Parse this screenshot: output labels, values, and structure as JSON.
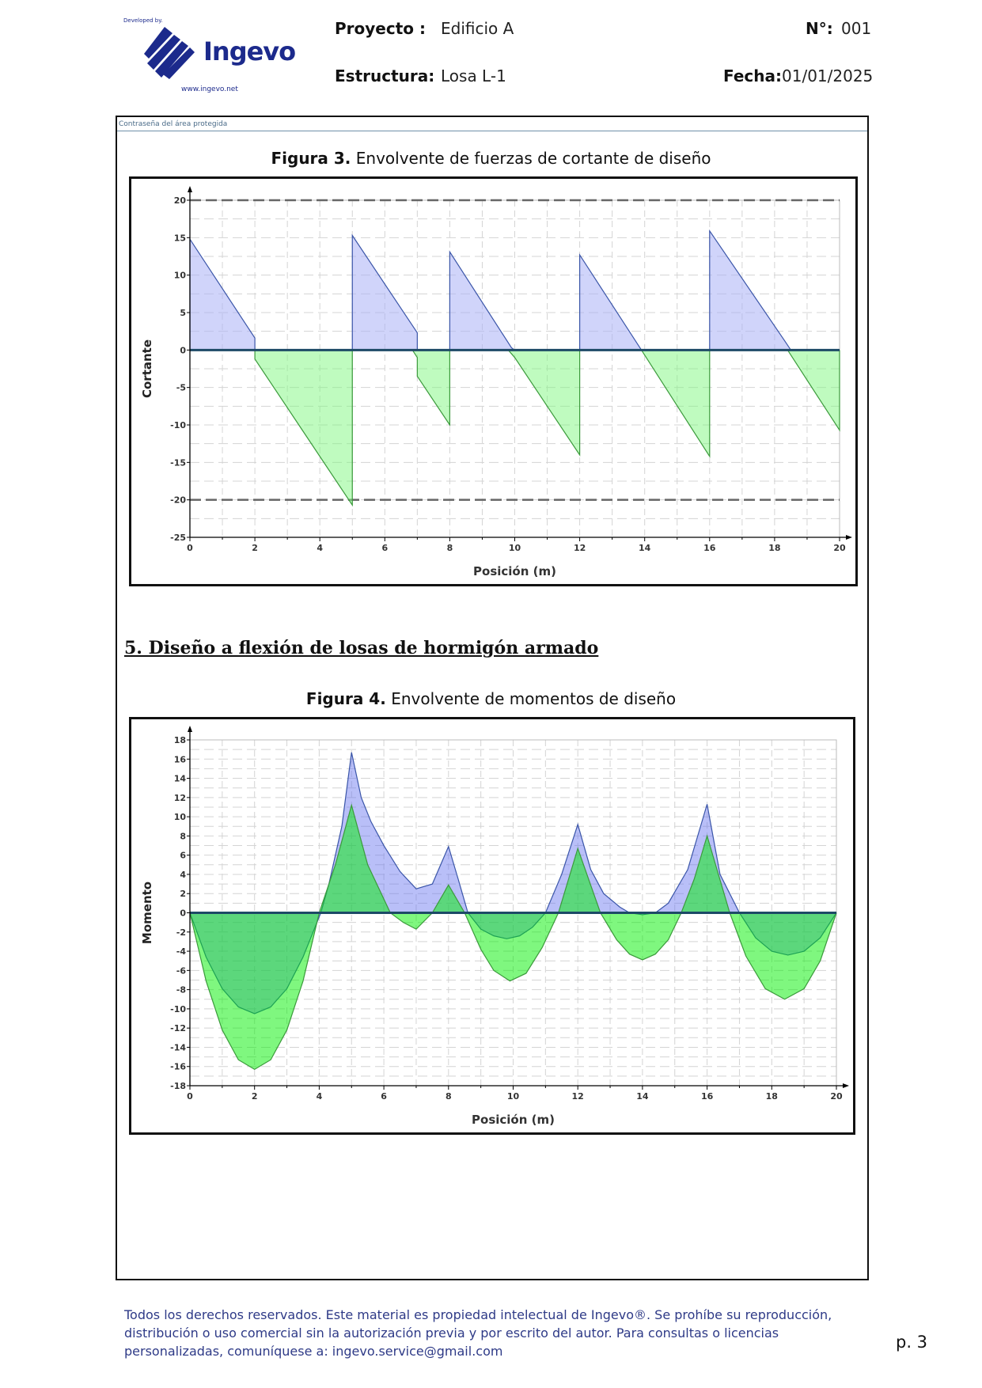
{
  "header": {
    "logo": {
      "developed_by": "Developed by.",
      "brand": "Ingevo",
      "website": "www.ingevo.net",
      "color": "#1c2a8c"
    },
    "project_label": "Proyecto :",
    "project_value": "Edificio A",
    "number_label": "N°:",
    "number_value": "001",
    "structure_label": "Estructura:",
    "structure_value": "Losa L-1",
    "date_label": "Fecha:",
    "date_value": "01/01/2025"
  },
  "frame": {
    "protected_area_label": "Contraseña del área protegida"
  },
  "figure3": {
    "prefix": "Figura 3.",
    "title": "Envolvente de fuerzas de cortante de diseño"
  },
  "section": {
    "heading": "5. Diseño a flexión de losas de hormigón armado"
  },
  "figure4": {
    "prefix": "Figura 4.",
    "title": "Envolvente de momentos  de diseño"
  },
  "chart_data": [
    {
      "type": "area",
      "xlabel": "Posición (m)",
      "ylabel": "Cortante",
      "xlim": [
        0,
        20
      ],
      "ylim": [
        -25,
        20
      ],
      "xticks": [
        0,
        2,
        4,
        6,
        8,
        10,
        12,
        14,
        16,
        18,
        20
      ],
      "yticks": [
        20,
        15,
        10,
        5,
        0,
        -5,
        -10,
        -15,
        -20,
        -25
      ],
      "grid": true,
      "reference_lines": [
        20,
        -20
      ],
      "series": [
        {
          "color": "#aab0f6",
          "points": [
            [
              0,
              0
            ],
            [
              0,
              14.8
            ],
            [
              2,
              1.6
            ],
            [
              2,
              0
            ],
            [
              5,
              0
            ],
            [
              5,
              15.3
            ],
            [
              7,
              2.3
            ],
            [
              7,
              0
            ],
            [
              8,
              0
            ],
            [
              8,
              13.1
            ],
            [
              9.9,
              0.3
            ],
            [
              10,
              0
            ],
            [
              12,
              0
            ],
            [
              12,
              12.7
            ],
            [
              13.9,
              0
            ],
            [
              16,
              0
            ],
            [
              16,
              15.9
            ],
            [
              18.3,
              1.3
            ],
            [
              18.5,
              0
            ],
            [
              20,
              0
            ]
          ]
        },
        {
          "color": "#80f880",
          "points": [
            [
              0,
              0
            ],
            [
              2,
              0
            ],
            [
              2,
              -1.2
            ],
            [
              5,
              -20.7
            ],
            [
              5,
              0
            ],
            [
              6.85,
              0
            ],
            [
              7,
              -1
            ],
            [
              7,
              -3.5
            ],
            [
              8,
              -10
            ],
            [
              8,
              0
            ],
            [
              9.8,
              0
            ],
            [
              10,
              -1
            ],
            [
              12,
              -14
            ],
            [
              12,
              0
            ],
            [
              13.9,
              0
            ],
            [
              16,
              -14.2
            ],
            [
              16,
              0
            ],
            [
              18.4,
              0
            ],
            [
              20,
              -10.7
            ],
            [
              20,
              0
            ]
          ]
        }
      ]
    },
    {
      "type": "area",
      "xlabel": "Posición (m)",
      "ylabel": "Momento",
      "xlim": [
        0,
        20
      ],
      "ylim": [
        -18,
        18
      ],
      "xticks": [
        0,
        2,
        4,
        6,
        8,
        10,
        12,
        14,
        16,
        18,
        20
      ],
      "yticks": [
        18,
        16,
        14,
        12,
        10,
        8,
        6,
        4,
        2,
        0,
        -2,
        -4,
        -6,
        -8,
        -10,
        -12,
        -14,
        -16,
        -18
      ],
      "grid": true,
      "series": [
        {
          "color": "#6470f0",
          "points": [
            [
              0,
              0
            ],
            [
              0.5,
              -4.6
            ],
            [
              1,
              -7.9
            ],
            [
              1.5,
              -9.8
            ],
            [
              2,
              -10.5
            ],
            [
              2.5,
              -9.8
            ],
            [
              3,
              -7.9
            ],
            [
              3.5,
              -4.6
            ],
            [
              4.05,
              0
            ],
            [
              4.3,
              3
            ],
            [
              4.7,
              9
            ],
            [
              5,
              16.7
            ],
            [
              5.3,
              12
            ],
            [
              5.6,
              9.5
            ],
            [
              6,
              7
            ],
            [
              6.5,
              4.3
            ],
            [
              7,
              2.5
            ],
            [
              7.5,
              3
            ],
            [
              8,
              6.9
            ],
            [
              8.3,
              3.5
            ],
            [
              8.6,
              0
            ],
            [
              9,
              -1.7
            ],
            [
              9.4,
              -2.4
            ],
            [
              9.8,
              -2.7
            ],
            [
              10.2,
              -2.4
            ],
            [
              10.6,
              -1.5
            ],
            [
              11,
              0
            ],
            [
              11.5,
              4
            ],
            [
              12,
              9.2
            ],
            [
              12.4,
              4.5
            ],
            [
              12.8,
              2
            ],
            [
              13.3,
              0.6
            ],
            [
              13.6,
              0
            ],
            [
              14,
              -0.2
            ],
            [
              14.4,
              0
            ],
            [
              14.8,
              1
            ],
            [
              15.4,
              4.5
            ],
            [
              16,
              11.3
            ],
            [
              16.4,
              4
            ],
            [
              17,
              0
            ],
            [
              17.5,
              -2.6
            ],
            [
              18,
              -4
            ],
            [
              18.5,
              -4.4
            ],
            [
              19,
              -4
            ],
            [
              19.5,
              -2.6
            ],
            [
              20,
              0
            ]
          ]
        },
        {
          "color": "#00f000",
          "points": [
            [
              0,
              0
            ],
            [
              0.5,
              -7.1
            ],
            [
              1,
              -12.2
            ],
            [
              1.5,
              -15.3
            ],
            [
              2,
              -16.3
            ],
            [
              2.5,
              -15.3
            ],
            [
              3,
              -12.2
            ],
            [
              3.5,
              -7.1
            ],
            [
              4,
              0
            ],
            [
              4.5,
              5
            ],
            [
              5,
              11.2
            ],
            [
              5.5,
              5
            ],
            [
              6.2,
              0
            ],
            [
              6.6,
              -1
            ],
            [
              7,
              -1.7
            ],
            [
              7.5,
              0
            ],
            [
              8,
              2.9
            ],
            [
              8.5,
              0
            ],
            [
              9,
              -3.8
            ],
            [
              9.4,
              -6
            ],
            [
              9.9,
              -7.1
            ],
            [
              10.4,
              -6.3
            ],
            [
              10.9,
              -3.6
            ],
            [
              11.4,
              0
            ],
            [
              12,
              6.7
            ],
            [
              12.7,
              0
            ],
            [
              13.2,
              -2.8
            ],
            [
              13.6,
              -4.3
            ],
            [
              14,
              -4.9
            ],
            [
              14.4,
              -4.3
            ],
            [
              14.8,
              -2.8
            ],
            [
              15.2,
              0
            ],
            [
              15.6,
              3.5
            ],
            [
              16,
              8
            ],
            [
              16.7,
              0
            ],
            [
              17.2,
              -4.5
            ],
            [
              17.8,
              -7.9
            ],
            [
              18.4,
              -9
            ],
            [
              19,
              -7.9
            ],
            [
              19.5,
              -5
            ],
            [
              20,
              0
            ]
          ]
        }
      ]
    }
  ],
  "footer": {
    "notice": "Todos los derechos reservados. Este material es propiedad intelectual de Ingevo®. Se prohíbe su reproducción, distribución o uso comercial sin la autorización previa y por escrito del autor. Para consultas o licencias personalizadas, comuníquese a: ingevo.service@gmail.com",
    "page": "p. 3"
  }
}
